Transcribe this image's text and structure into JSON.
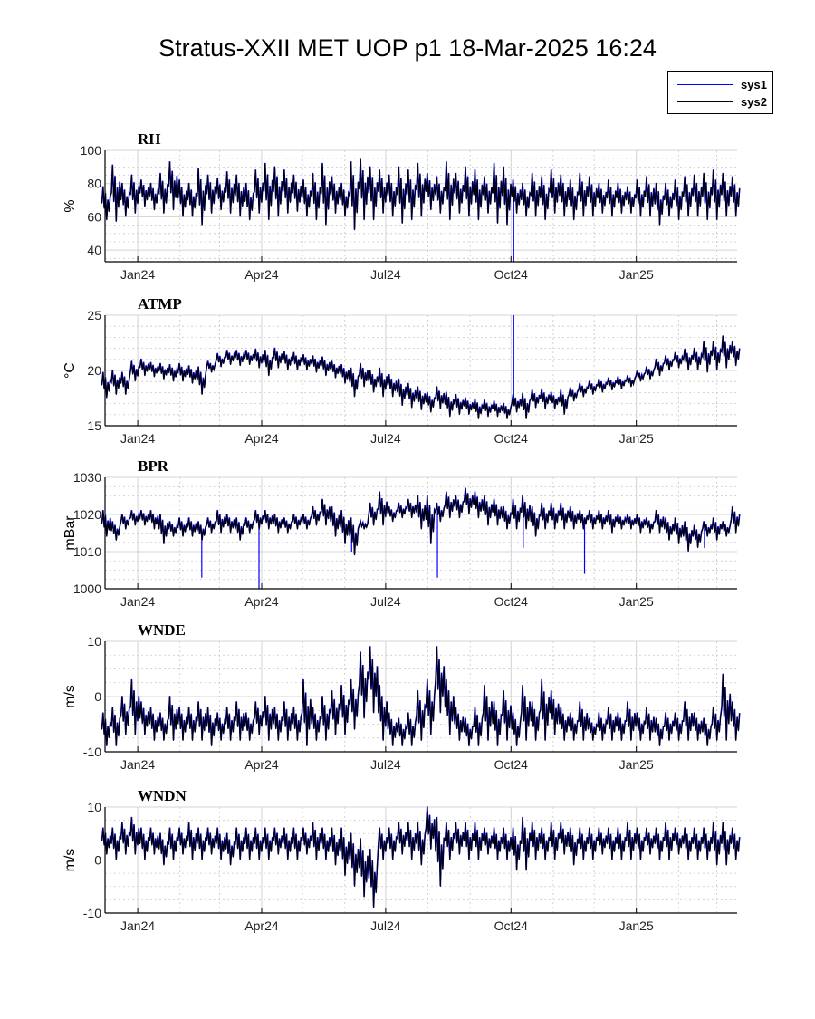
{
  "chart_data": {
    "type": "line",
    "title": "Stratus-XXII MET UOP p1 18-Mar-2025 16:24",
    "legend": {
      "placement": "top-right",
      "entries": [
        {
          "name": "sys1",
          "color": "#0000ff"
        },
        {
          "name": "sys2",
          "color": "#000000"
        }
      ]
    },
    "xlim": [
      "2023-12-08",
      "2025-03-16"
    ],
    "x_tick_labels": [
      {
        "date": "2024-01-01",
        "label": "Jan24"
      },
      {
        "date": "2024-04-01",
        "label": "Apr24"
      },
      {
        "date": "2024-07-01",
        "label": "Jul24"
      },
      {
        "date": "2024-10-01",
        "label": "Oct24"
      },
      {
        "date": "2025-01-01",
        "label": "Jan25"
      }
    ],
    "grid": "major and minor",
    "x_dates": [
      "2023-12-09",
      "2023-12-16",
      "2023-12-23",
      "2023-12-30",
      "2024-01-06",
      "2024-01-13",
      "2024-01-20",
      "2024-01-27",
      "2024-02-03",
      "2024-02-10",
      "2024-02-17",
      "2024-02-24",
      "2024-03-02",
      "2024-03-09",
      "2024-03-16",
      "2024-03-23",
      "2024-03-30",
      "2024-04-06",
      "2024-04-13",
      "2024-04-20",
      "2024-04-27",
      "2024-05-04",
      "2024-05-11",
      "2024-05-18",
      "2024-05-25",
      "2024-06-01",
      "2024-06-08",
      "2024-06-15",
      "2024-06-22",
      "2024-06-29",
      "2024-07-06",
      "2024-07-13",
      "2024-07-20",
      "2024-07-27",
      "2024-08-03",
      "2024-08-10",
      "2024-08-17",
      "2024-08-24",
      "2024-08-31",
      "2024-09-07",
      "2024-09-14",
      "2024-09-21",
      "2024-09-28",
      "2024-10-05",
      "2024-10-12",
      "2024-10-19",
      "2024-10-26",
      "2024-11-02",
      "2024-11-09",
      "2024-11-16",
      "2024-11-23",
      "2024-11-30",
      "2024-12-07",
      "2024-12-14",
      "2024-12-21",
      "2024-12-28",
      "2025-01-04",
      "2025-01-11",
      "2025-01-18",
      "2025-01-25",
      "2025-02-01",
      "2025-02-08",
      "2025-02-15",
      "2025-02-22",
      "2025-03-01",
      "2025-03-08",
      "2025-03-15"
    ],
    "panels": [
      {
        "title": "RH",
        "ylabel": "%",
        "ylim": [
          33,
          100
        ],
        "yticks": [
          40,
          60,
          80,
          100
        ],
        "yminor": 5,
        "weekly_high": [
          78,
          91,
          80,
          85,
          82,
          80,
          86,
          93,
          82,
          80,
          89,
          85,
          83,
          87,
          85,
          80,
          88,
          92,
          90,
          88,
          85,
          82,
          86,
          92,
          84,
          80,
          93,
          95,
          90,
          88,
          85,
          90,
          88,
          92,
          86,
          84,
          93,
          86,
          90,
          88,
          84,
          92,
          90,
          82,
          80,
          86,
          84,
          88,
          85,
          82,
          86,
          84,
          80,
          82,
          80,
          78,
          82,
          84,
          80,
          80,
          82,
          84,
          85,
          86,
          88,
          86,
          84
        ],
        "weekly_low": [
          58,
          57,
          60,
          62,
          66,
          64,
          62,
          64,
          60,
          60,
          55,
          62,
          64,
          62,
          60,
          58,
          62,
          58,
          60,
          62,
          63,
          60,
          58,
          55,
          62,
          60,
          52,
          58,
          58,
          62,
          60,
          56,
          58,
          60,
          64,
          62,
          58,
          62,
          60,
          58,
          62,
          56,
          55,
          62,
          60,
          60,
          58,
          62,
          60,
          58,
          60,
          60,
          62,
          60,
          62,
          62,
          60,
          60,
          55,
          60,
          58,
          60,
          60,
          58,
          58,
          60,
          60
        ],
        "sys1_spikes": [
          {
            "date": "2024-10-03",
            "value": 33
          }
        ]
      },
      {
        "title": "ATMP",
        "ylabel": "°C",
        "ylim": [
          15,
          25
        ],
        "yticks": [
          15,
          20,
          25
        ],
        "yminor": 1,
        "weekly_high": [
          19.8,
          20.0,
          19.8,
          20.8,
          21.0,
          20.7,
          20.6,
          20.5,
          20.6,
          20.4,
          20.3,
          20.8,
          21.5,
          21.8,
          21.8,
          21.8,
          21.9,
          21.8,
          22.0,
          21.7,
          21.6,
          21.4,
          21.3,
          21.2,
          20.8,
          20.5,
          20.2,
          20.6,
          20.0,
          20.2,
          19.6,
          19.2,
          18.8,
          18.5,
          18.0,
          18.5,
          18.0,
          17.8,
          17.5,
          17.4,
          17.3,
          17.2,
          17.0,
          17.8,
          17.9,
          18.2,
          18.3,
          18.0,
          18.2,
          18.4,
          18.8,
          19.0,
          19.2,
          19.3,
          19.4,
          19.5,
          19.9,
          20.3,
          21.0,
          21.3,
          21.6,
          21.9,
          22.0,
          22.6,
          22.6,
          23.1,
          22.6
        ],
        "weekly_low": [
          17.5,
          17.8,
          17.8,
          19.0,
          19.5,
          19.4,
          19.2,
          19.0,
          19.0,
          18.8,
          17.8,
          19.8,
          20.3,
          20.5,
          20.4,
          20.5,
          20.2,
          19.5,
          20.2,
          20.0,
          20.0,
          20.0,
          19.8,
          19.5,
          19.3,
          18.8,
          17.6,
          18.5,
          18.0,
          17.6,
          17.6,
          16.8,
          16.6,
          16.4,
          16.2,
          16.5,
          15.8,
          16.0,
          16.0,
          15.6,
          15.8,
          15.8,
          15.6,
          16.2,
          15.6,
          16.6,
          16.5,
          16.5,
          16.0,
          17.2,
          17.6,
          17.8,
          18.0,
          18.2,
          18.3,
          18.5,
          19.0,
          19.2,
          19.5,
          20.0,
          20.2,
          20.0,
          20.0,
          19.8,
          20.0,
          20.2,
          20.4
        ],
        "sys1_spikes": [
          {
            "date": "2024-10-03",
            "value": 25
          }
        ]
      },
      {
        "title": "BPR",
        "ylabel": "mBar",
        "ylim": [
          1000,
          1030
        ],
        "yticks": [
          1000,
          1010,
          1020,
          1030
        ],
        "yminor": 2.5,
        "weekly_high": [
          1021,
          1018,
          1020,
          1021,
          1021,
          1021,
          1020,
          1018,
          1019,
          1019,
          1018,
          1019,
          1021,
          1020,
          1019,
          1019,
          1021,
          1021,
          1020,
          1019,
          1020,
          1020,
          1022,
          1024,
          1022,
          1021,
          1019,
          1018,
          1023,
          1026,
          1022,
          1023,
          1024,
          1025,
          1025,
          1023,
          1026,
          1025,
          1027,
          1026,
          1025,
          1024,
          1022,
          1024,
          1025,
          1022,
          1023,
          1023,
          1023,
          1022,
          1021,
          1021,
          1021,
          1021,
          1020,
          1020,
          1020,
          1019,
          1021,
          1019,
          1019,
          1018,
          1017,
          1018,
          1019,
          1018,
          1022
        ],
        "weekly_low": [
          1014,
          1013,
          1016,
          1017,
          1017,
          1016,
          1012,
          1014,
          1014,
          1014,
          1013,
          1015,
          1015,
          1015,
          1013,
          1015,
          1016,
          1016,
          1015,
          1015,
          1016,
          1016,
          1017,
          1017,
          1014,
          1012,
          1009,
          1016,
          1017,
          1017,
          1018,
          1019,
          1019,
          1016,
          1012,
          1018,
          1019,
          1019,
          1020,
          1019,
          1017,
          1017,
          1016,
          1016,
          1016,
          1014,
          1016,
          1016,
          1016,
          1016,
          1016,
          1016,
          1016,
          1015,
          1016,
          1016,
          1015,
          1015,
          1015,
          1013,
          1012,
          1010,
          1011,
          1014,
          1013,
          1014,
          1015
        ],
        "sys1_spikes": [
          {
            "date": "2024-02-17",
            "value": 1003
          },
          {
            "date": "2024-03-30",
            "value": 1000
          },
          {
            "date": "2024-06-06",
            "value": 1010
          },
          {
            "date": "2024-08-08",
            "value": 1003
          },
          {
            "date": "2024-10-10",
            "value": 1011
          },
          {
            "date": "2024-11-24",
            "value": 1004
          },
          {
            "date": "2025-02-20",
            "value": 1011
          }
        ]
      },
      {
        "title": "WNDE",
        "ylabel": "m/s",
        "ylim": [
          -10,
          10
        ],
        "yticks": [
          -10,
          0,
          10
        ],
        "yminor": 2.5,
        "weekly_high": [
          -3,
          -2,
          0,
          3,
          -1,
          -2,
          -3,
          0,
          -2,
          -2,
          -1,
          -2,
          -3,
          -2,
          -1,
          -3,
          -1,
          0,
          -2,
          -1,
          -2,
          3,
          -2,
          0,
          1,
          2,
          3,
          8,
          9,
          2,
          -3,
          -4,
          -3,
          1,
          3,
          9,
          3,
          -2,
          -4,
          -2,
          2,
          -1,
          1,
          -3,
          2,
          -1,
          3,
          1,
          -2,
          -3,
          -1,
          -4,
          -3,
          -2,
          -3,
          -1,
          -3,
          -2,
          -4,
          -3,
          -3,
          -1,
          -3,
          -4,
          -2,
          4,
          -1
        ],
        "weekly_low": [
          -9,
          -9,
          -7,
          -7,
          -7,
          -8,
          -8,
          -8,
          -8,
          -8,
          -8,
          -9,
          -8,
          -8,
          -8,
          -8,
          -7,
          -8,
          -8,
          -8,
          -8,
          -9,
          -8,
          -8,
          -7,
          -7,
          -6,
          -4,
          -3,
          -8,
          -9,
          -9,
          -9,
          -8,
          -7,
          -3,
          -7,
          -8,
          -9,
          -9,
          -8,
          -9,
          -8,
          -9,
          -8,
          -8,
          -8,
          -7,
          -8,
          -8,
          -8,
          -8,
          -8,
          -8,
          -8,
          -8,
          -8,
          -8,
          -9,
          -8,
          -8,
          -8,
          -8,
          -9,
          -8,
          -8,
          -8
        ],
        "sys1_spikes": []
      },
      {
        "title": "WNDN",
        "ylabel": "m/s",
        "ylim": [
          -10,
          10
        ],
        "yticks": [
          -10,
          0,
          10
        ],
        "yminor": 2.5,
        "weekly_high": [
          6,
          6,
          7,
          8,
          6,
          6,
          5,
          6,
          6,
          7,
          6,
          6,
          6,
          5,
          6,
          6,
          6,
          6,
          6,
          6,
          6,
          6,
          7,
          6,
          6,
          6,
          5,
          4,
          2,
          6,
          6,
          7,
          7,
          7,
          10,
          8,
          7,
          7,
          7,
          7,
          6,
          6,
          6,
          6,
          8,
          7,
          6,
          7,
          7,
          6,
          6,
          6,
          6,
          6,
          6,
          7,
          6,
          6,
          6,
          7,
          6,
          6,
          6,
          6,
          7,
          7,
          6
        ],
        "weekly_low": [
          1,
          0,
          1,
          1,
          0,
          1,
          -1,
          0,
          1,
          0,
          0,
          1,
          0,
          -1,
          0,
          0,
          0,
          0,
          1,
          0,
          0,
          1,
          0,
          0,
          -1,
          -3,
          -5,
          -7,
          -9,
          0,
          0,
          1,
          0,
          -1,
          2,
          -5,
          0,
          1,
          0,
          0,
          1,
          0,
          0,
          -2,
          -2,
          0,
          0,
          0,
          1,
          -1,
          0,
          0,
          1,
          0,
          0,
          0,
          0,
          1,
          0,
          0,
          1,
          0,
          0,
          0,
          -1,
          -1,
          0
        ],
        "sys1_spikes": []
      }
    ]
  }
}
